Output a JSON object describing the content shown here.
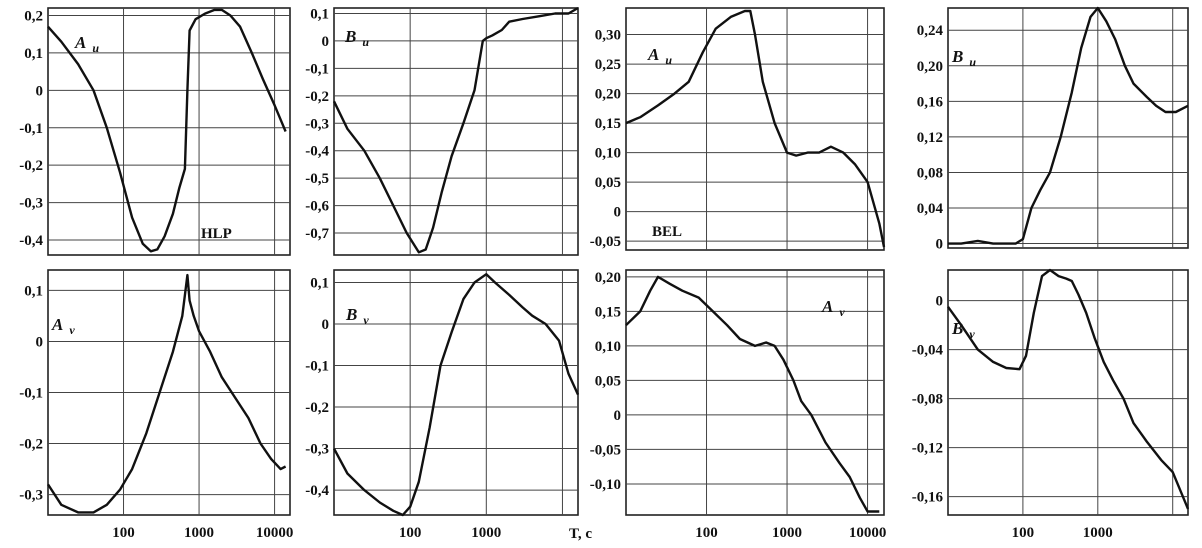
{
  "chart_data": [
    {
      "type": "line",
      "title": "",
      "label": "A",
      "sub": "u",
      "station": "HLP",
      "xscale": "log",
      "xlim": [
        10,
        16000
      ],
      "ylim": [
        -0.44,
        0.22
      ],
      "xticks": [],
      "yticks": [
        "0,2",
        "0,1",
        "0",
        "-0,1",
        "-0,2",
        "-0,3",
        "-0,4"
      ],
      "x": [
        10,
        15,
        25,
        40,
        60,
        90,
        130,
        180,
        230,
        280,
        350,
        450,
        550,
        650,
        700,
        750,
        900,
        1200,
        1600,
        2000,
        2600,
        3500,
        5000,
        7000,
        10000,
        14000
      ],
      "y": [
        0.17,
        0.13,
        0.07,
        0.0,
        -0.1,
        -0.22,
        -0.34,
        -0.41,
        -0.43,
        -0.425,
        -0.39,
        -0.33,
        -0.26,
        -0.21,
        0.0,
        0.16,
        0.19,
        0.205,
        0.215,
        0.215,
        0.2,
        0.17,
        0.1,
        0.03,
        -0.04,
        -0.11
      ]
    },
    {
      "type": "line",
      "title": "",
      "label": "B",
      "sub": "u",
      "station": "",
      "xscale": "log",
      "xlim": [
        10,
        16000
      ],
      "ylim": [
        -0.78,
        0.12
      ],
      "xticks": [],
      "yticks": [
        "0,1",
        "0",
        "-0,1",
        "-0,2",
        "-0,3",
        "-0,4",
        "-0,5",
        "-0,6",
        "-0,7"
      ],
      "x": [
        10,
        15,
        25,
        40,
        60,
        90,
        130,
        160,
        200,
        260,
        350,
        500,
        700,
        900,
        1000,
        1200,
        1600,
        2000,
        3000,
        5000,
        8000,
        12000,
        16000
      ],
      "y": [
        -0.22,
        -0.32,
        -0.4,
        -0.5,
        -0.6,
        -0.7,
        -0.77,
        -0.76,
        -0.68,
        -0.55,
        -0.42,
        -0.3,
        -0.18,
        0.0,
        0.01,
        0.02,
        0.04,
        0.07,
        0.08,
        0.09,
        0.1,
        0.1,
        0.12
      ]
    },
    {
      "type": "line",
      "title": "",
      "label": "A",
      "sub": "u",
      "station": "BEL",
      "xscale": "log",
      "xlim": [
        10,
        16000
      ],
      "ylim": [
        -0.065,
        0.345
      ],
      "xticks": [],
      "yticks": [
        "0,30",
        "0,25",
        "0,20",
        "0,15",
        "0,10",
        "0,05",
        "0",
        "-0,05"
      ],
      "x": [
        10,
        15,
        25,
        40,
        60,
        90,
        130,
        200,
        300,
        350,
        400,
        500,
        700,
        1000,
        1300,
        1800,
        2500,
        3500,
        5000,
        7000,
        10000,
        14000,
        16000
      ],
      "y": [
        0.15,
        0.16,
        0.18,
        0.2,
        0.22,
        0.27,
        0.31,
        0.33,
        0.34,
        0.34,
        0.3,
        0.22,
        0.15,
        0.1,
        0.095,
        0.1,
        0.1,
        0.11,
        0.1,
        0.08,
        0.05,
        -0.02,
        -0.06
      ]
    },
    {
      "type": "line",
      "title": "",
      "label": "B",
      "sub": "u",
      "station": "",
      "xscale": "log",
      "xlim": [
        10,
        16000
      ],
      "ylim": [
        -0.005,
        0.265
      ],
      "xticks": [],
      "yticks": [
        "0,24",
        "0,20",
        "0,16",
        "0,12",
        "0,08",
        "0,04",
        "0"
      ],
      "x": [
        10,
        15,
        25,
        40,
        60,
        80,
        100,
        130,
        170,
        230,
        320,
        450,
        600,
        800,
        1000,
        1300,
        1700,
        2300,
        3000,
        4500,
        6000,
        8000,
        11000,
        16000
      ],
      "y": [
        0.0,
        0.0,
        0.003,
        0.0,
        0.0,
        0.0,
        0.005,
        0.04,
        0.06,
        0.08,
        0.12,
        0.17,
        0.22,
        0.255,
        0.265,
        0.25,
        0.23,
        0.2,
        0.18,
        0.165,
        0.155,
        0.148,
        0.148,
        0.155
      ]
    },
    {
      "type": "line",
      "title": "",
      "label": "A",
      "sub": "v",
      "station": "",
      "xscale": "log",
      "xlim": [
        10,
        16000
      ],
      "ylim": [
        -0.34,
        0.14
      ],
      "xticks": [
        "100",
        "1000",
        "10000"
      ],
      "yticks": [
        "0,1",
        "0",
        "-0,1",
        "-0,2",
        "-0,3"
      ],
      "x": [
        10,
        15,
        25,
        40,
        60,
        90,
        130,
        200,
        300,
        450,
        600,
        700,
        750,
        850,
        1000,
        1400,
        2000,
        3000,
        4500,
        6500,
        9000,
        12000,
        14000
      ],
      "y": [
        -0.28,
        -0.32,
        -0.335,
        -0.335,
        -0.32,
        -0.29,
        -0.25,
        -0.18,
        -0.1,
        -0.02,
        0.05,
        0.13,
        0.08,
        0.05,
        0.02,
        -0.02,
        -0.07,
        -0.11,
        -0.15,
        -0.2,
        -0.23,
        -0.25,
        -0.245
      ]
    },
    {
      "type": "line",
      "title": "",
      "label": "B",
      "sub": "v",
      "station": "",
      "xscale": "log",
      "xlim": [
        10,
        16000
      ],
      "ylim": [
        -0.46,
        0.13
      ],
      "xticks": [
        "100",
        "1000"
      ],
      "yticks": [
        "0,1",
        "0",
        "-0,1",
        "-0,2",
        "-0,3",
        "-0,4"
      ],
      "x": [
        10,
        15,
        25,
        40,
        60,
        80,
        100,
        130,
        180,
        250,
        350,
        500,
        700,
        1000,
        1300,
        2000,
        3000,
        4000,
        6000,
        9000,
        12000,
        16000
      ],
      "y": [
        -0.3,
        -0.36,
        -0.4,
        -0.43,
        -0.45,
        -0.46,
        -0.44,
        -0.38,
        -0.25,
        -0.1,
        -0.02,
        0.06,
        0.1,
        0.12,
        0.1,
        0.07,
        0.04,
        0.02,
        0.0,
        -0.04,
        -0.12,
        -0.17
      ]
    },
    {
      "type": "line",
      "title": "",
      "label": "A",
      "sub": "v",
      "station": "",
      "xscale": "log",
      "xlim": [
        10,
        16000
      ],
      "ylim": [
        -0.145,
        0.21
      ],
      "xticks": [
        "100",
        "1000",
        "10000"
      ],
      "yticks": [
        "0,20",
        "0,15",
        "0,10",
        "0,05",
        "0",
        "-0,05",
        "-0,10"
      ],
      "x": [
        10,
        15,
        20,
        25,
        35,
        50,
        80,
        120,
        180,
        260,
        400,
        550,
        700,
        900,
        1200,
        1500,
        2000,
        3000,
        4500,
        6000,
        8000,
        10000,
        14000
      ],
      "y": [
        0.13,
        0.15,
        0.18,
        0.2,
        0.19,
        0.18,
        0.17,
        0.15,
        0.13,
        0.11,
        0.1,
        0.105,
        0.1,
        0.08,
        0.05,
        0.02,
        0.0,
        -0.04,
        -0.07,
        -0.09,
        -0.12,
        -0.14,
        -0.14
      ]
    },
    {
      "type": "line",
      "title": "",
      "label": "B",
      "sub": "v",
      "station": "",
      "xscale": "log",
      "xlim": [
        10,
        16000
      ],
      "ylim": [
        -0.175,
        0.025
      ],
      "xticks": [
        "100",
        "1000"
      ],
      "yticks": [
        "0",
        "-0,04",
        "-0,08",
        "-0,12",
        "-0,16"
      ],
      "x": [
        10,
        15,
        25,
        40,
        60,
        90,
        110,
        140,
        180,
        230,
        300,
        380,
        450,
        550,
        700,
        900,
        1200,
        1600,
        2200,
        3000,
        4500,
        7000,
        10000,
        16000
      ],
      "y": [
        -0.005,
        -0.02,
        -0.04,
        -0.05,
        -0.055,
        -0.056,
        -0.045,
        -0.01,
        0.02,
        0.025,
        0.02,
        0.018,
        0.016,
        0.005,
        -0.01,
        -0.03,
        -0.05,
        -0.065,
        -0.08,
        -0.1,
        -0.115,
        -0.13,
        -0.14,
        -0.17
      ]
    }
  ],
  "xaxis_label": "T, c"
}
